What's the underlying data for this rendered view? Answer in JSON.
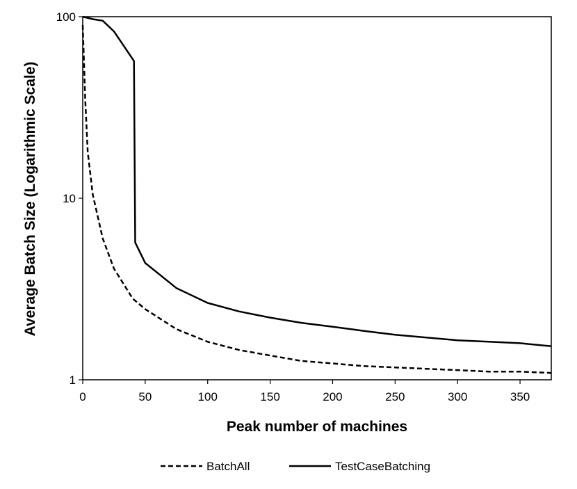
{
  "chart_data": {
    "type": "line",
    "title": "",
    "xlabel": "Peak number of machines",
    "ylabel": "Average Batch Size (Logarithmic Scale)",
    "xlim": [
      0,
      375
    ],
    "ylim": [
      1,
      100
    ],
    "yscale": "log",
    "x_ticks": [
      0,
      50,
      100,
      150,
      200,
      250,
      300,
      350
    ],
    "x_tick_labels": [
      "0",
      "50",
      "100",
      "150",
      "200",
      "250",
      "300",
      "350"
    ],
    "y_ticks": [
      1,
      10,
      100
    ],
    "y_tick_labels": [
      "1",
      "10",
      "100"
    ],
    "grid": false,
    "legend_position": "bottom",
    "series": [
      {
        "name": "BatchAll",
        "line_style": "dashed",
        "color": "#000000",
        "x": [
          0,
          2,
          4,
          8,
          16,
          25,
          40,
          50,
          75,
          100,
          125,
          150,
          175,
          200,
          225,
          250,
          275,
          300,
          325,
          350,
          375
        ],
        "y": [
          90,
          35,
          18,
          10.5,
          6.0,
          4.1,
          2.8,
          2.45,
          1.9,
          1.62,
          1.46,
          1.36,
          1.27,
          1.23,
          1.19,
          1.17,
          1.15,
          1.13,
          1.11,
          1.11,
          1.09
        ]
      },
      {
        "name": "TestCaseBatching",
        "line_style": "solid",
        "color": "#000000",
        "x": [
          0,
          8,
          16,
          25,
          41,
          42,
          50,
          75,
          100,
          125,
          150,
          175,
          200,
          225,
          250,
          275,
          300,
          325,
          350,
          375
        ],
        "y": [
          100,
          97,
          95,
          83,
          57,
          5.7,
          4.4,
          3.2,
          2.65,
          2.38,
          2.2,
          2.06,
          1.96,
          1.86,
          1.77,
          1.71,
          1.65,
          1.62,
          1.59,
          1.53
        ]
      }
    ]
  }
}
